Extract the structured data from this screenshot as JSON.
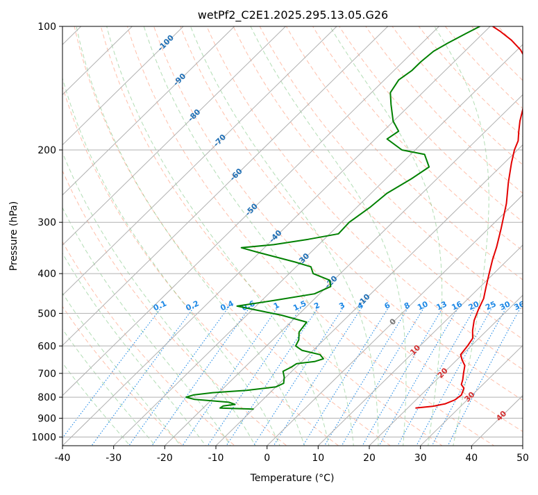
{
  "chart_data": {
    "type": "skew-t log-p",
    "title": "wetPf2_C2E1.2025.295.13.05.G26",
    "xlabel": "Temperature (°C)",
    "ylabel": "Pressure (hPa)",
    "xlim": [
      -40,
      50
    ],
    "ylim_hpa": [
      1050,
      100
    ],
    "y_scale": "log",
    "grid": true,
    "x_ticks": [
      -40,
      -30,
      -20,
      -10,
      0,
      10,
      20,
      30,
      40,
      50
    ],
    "y_ticks": [
      100,
      200,
      300,
      400,
      500,
      600,
      700,
      800,
      900,
      1000
    ],
    "isotherm_labels": [
      {
        "value": -100,
        "pressure": 110
      },
      {
        "value": -90,
        "pressure": 135
      },
      {
        "value": -80,
        "pressure": 165
      },
      {
        "value": -70,
        "pressure": 190
      },
      {
        "value": -60,
        "pressure": 230
      },
      {
        "value": -50,
        "pressure": 280
      },
      {
        "value": -40,
        "pressure": 325
      },
      {
        "value": -30,
        "pressure": 370
      },
      {
        "value": -20,
        "pressure": 420
      },
      {
        "value": -10,
        "pressure": 465
      },
      {
        "value": 0,
        "pressure": 525
      },
      {
        "value": 10,
        "pressure": 615
      },
      {
        "value": 20,
        "pressure": 700
      },
      {
        "value": 30,
        "pressure": 800
      },
      {
        "value": 40,
        "pressure": 890
      }
    ],
    "mixing_ratio_labels": [
      "0.1",
      "0.2",
      "0.4",
      "0.6",
      "1",
      "1.5",
      "2",
      "3",
      "4",
      "6",
      "8",
      "10",
      "13",
      "16",
      "20",
      "25",
      "30",
      "36"
    ],
    "mixing_ratio_label_pressure": 485,
    "colors": {
      "temperature": "#e30000",
      "dewpoint": "#008000",
      "isotherm_grid": "#b0b0b0",
      "dry_adiabat": "#ff8a65",
      "moist_adiabat": "#66bb6a",
      "mixing_ratio": "#1e88e5",
      "isotherm_label_blue": "#1f6fb5",
      "isotherm_label_red": "#d32f2f",
      "isotherm_label_gray": "#777777"
    },
    "series": [
      {
        "name": "",
        "role": "temperature",
        "points": [
          [
            21.5,
            850
          ],
          [
            24.5,
            842
          ],
          [
            26.5,
            830
          ],
          [
            27.6,
            812
          ],
          [
            27.9,
            790
          ],
          [
            27.0,
            760
          ],
          [
            25.8,
            745
          ],
          [
            25.1,
            725
          ],
          [
            24.0,
            700
          ],
          [
            22.7,
            670
          ],
          [
            21.1,
            650
          ],
          [
            19.7,
            630
          ],
          [
            19.3,
            600
          ],
          [
            18.8,
            575
          ],
          [
            17.2,
            550
          ],
          [
            15.5,
            520
          ],
          [
            14.2,
            490
          ],
          [
            13.0,
            460
          ],
          [
            11.1,
            430
          ],
          [
            9.1,
            400
          ],
          [
            7.0,
            370
          ],
          [
            5.3,
            345
          ],
          [
            2.4,
            310
          ],
          [
            -1.5,
            270
          ],
          [
            -5.3,
            240
          ],
          [
            -8.6,
            215
          ],
          [
            -10.6,
            200
          ],
          [
            -11.7,
            190
          ],
          [
            -13.5,
            180
          ],
          [
            -15.3,
            170
          ],
          [
            -17.8,
            155
          ],
          [
            -20.5,
            143
          ],
          [
            -23.2,
            132
          ],
          [
            -25.7,
            122
          ],
          [
            -29.4,
            114
          ],
          [
            -33.1,
            108
          ],
          [
            -36.9,
            103
          ],
          [
            -39.5,
            100
          ]
        ]
      },
      {
        "name": "",
        "role": "dewpoint",
        "points": [
          [
            -9.9,
            855
          ],
          [
            -16.7,
            850
          ],
          [
            -16.5,
            840
          ],
          [
            -14.5,
            833
          ],
          [
            -16.1,
            823
          ],
          [
            -23.4,
            810
          ],
          [
            -25.5,
            800
          ],
          [
            -24.5,
            790
          ],
          [
            -21.2,
            780
          ],
          [
            -15.0,
            770
          ],
          [
            -10.0,
            755
          ],
          [
            -9.2,
            740
          ],
          [
            -10.3,
            715
          ],
          [
            -11.7,
            692
          ],
          [
            -10.9,
            675
          ],
          [
            -10.6,
            663
          ],
          [
            -7.5,
            655
          ],
          [
            -6.3,
            645
          ],
          [
            -7.8,
            630
          ],
          [
            -12.2,
            615
          ],
          [
            -14.3,
            600
          ],
          [
            -14.9,
            580
          ],
          [
            -16.4,
            555
          ],
          [
            -16.9,
            525
          ],
          [
            -23.2,
            505
          ],
          [
            -33.7,
            480
          ],
          [
            -27.6,
            465
          ],
          [
            -21.0,
            448
          ],
          [
            -19.3,
            430
          ],
          [
            -20.8,
            415
          ],
          [
            -25.3,
            400
          ],
          [
            -27.1,
            385
          ],
          [
            -31.1,
            375
          ],
          [
            -40.4,
            355
          ],
          [
            -44.5,
            346
          ],
          [
            -38.8,
            340
          ],
          [
            -33.1,
            330
          ],
          [
            -28.3,
            320
          ],
          [
            -28.5,
            300
          ],
          [
            -27.4,
            275
          ],
          [
            -26.9,
            255
          ],
          [
            -25.0,
            235
          ],
          [
            -23.9,
            220
          ],
          [
            -27.3,
            205
          ],
          [
            -32.6,
            200
          ],
          [
            -37.7,
            188
          ],
          [
            -37.0,
            180
          ],
          [
            -40.1,
            170
          ],
          [
            -43.8,
            155
          ],
          [
            -46.3,
            145
          ],
          [
            -47.2,
            135
          ],
          [
            -46.5,
            128
          ],
          [
            -46.5,
            122
          ],
          [
            -46.1,
            115
          ],
          [
            -45.0,
            110
          ],
          [
            -43.3,
            104
          ],
          [
            -42.0,
            100
          ]
        ]
      }
    ]
  }
}
